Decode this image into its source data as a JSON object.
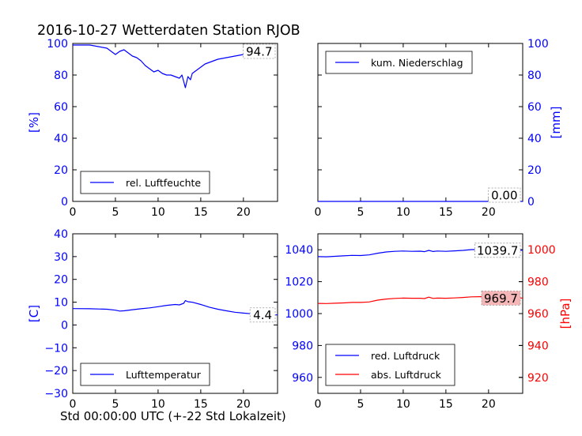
{
  "figure": {
    "title": "2016-10-27 Wetterdaten Station RJOB",
    "xlabel": "Std 00:00:00 UTC (+-22 Std Lokalzeit)"
  },
  "colors": {
    "blue": "#0000ff",
    "red": "#ff0000",
    "value_box_fill": "#ffffff",
    "value_box_fill_red": "#f4b6b6",
    "axes": "#000000"
  },
  "chart_data": [
    {
      "type": "line",
      "panel": "top-left",
      "xlim": [
        0,
        24
      ],
      "xticks": [
        "0",
        "5",
        "10",
        "15",
        "20"
      ],
      "ylim": [
        0,
        100
      ],
      "yticks": [
        "0",
        "20",
        "40",
        "60",
        "80",
        "100"
      ],
      "ylabel": "[%]",
      "ylabel_side": "left",
      "legend": "lower-left",
      "current_value": "94.7",
      "series": [
        {
          "name": "rel. Luftfeuchte",
          "color": "#0000ff",
          "x": [
            0,
            1,
            2,
            3,
            4,
            4.5,
            5,
            5.5,
            6,
            7,
            7.5,
            8,
            8.5,
            9,
            9.5,
            10,
            10.5,
            11,
            11.5,
            12,
            12.5,
            12.8,
            13,
            13.2,
            13.5,
            13.8,
            14,
            14.5,
            15,
            15.5,
            16,
            17,
            18,
            19,
            20,
            21,
            22,
            23,
            23.5
          ],
          "y": [
            99,
            99,
            99,
            98,
            97,
            95,
            93,
            95,
            96,
            92,
            91,
            89,
            86,
            84,
            82,
            83,
            81,
            80,
            80,
            79,
            78,
            80,
            76,
            72,
            79,
            77,
            81,
            83,
            85,
            87,
            88,
            90,
            91,
            92,
            93,
            93,
            94,
            95,
            95
          ]
        }
      ]
    },
    {
      "type": "line",
      "panel": "top-right",
      "xlim": [
        0,
        24
      ],
      "xticks": [
        "0",
        "5",
        "10",
        "15",
        "20"
      ],
      "ylim": [
        0,
        100
      ],
      "yticks": [
        "0",
        "20",
        "40",
        "60",
        "80",
        "100"
      ],
      "ylabel": "[mm]",
      "ylabel_side": "right",
      "legend": "upper-left",
      "current_value": "0.00",
      "series": [
        {
          "name": "kum. Niederschlag",
          "color": "#0000ff",
          "x": [
            0,
            24
          ],
          "y": [
            0,
            0
          ]
        }
      ]
    },
    {
      "type": "line",
      "panel": "bottom-left",
      "xlim": [
        0,
        24
      ],
      "xticks": [
        "0",
        "5",
        "10",
        "15",
        "20"
      ],
      "ylim": [
        -30,
        40
      ],
      "yticks": [
        "−30",
        "−20",
        "−10",
        "0",
        "10",
        "20",
        "30",
        "40"
      ],
      "ylabel": "[C]",
      "ylabel_side": "left",
      "legend": "lower-left",
      "current_value": "4.4",
      "series": [
        {
          "name": "Lufttemperatur",
          "color": "#0000ff",
          "x": [
            0,
            2,
            4,
            5,
            5.5,
            6,
            7,
            8,
            9,
            10,
            11,
            12,
            12.5,
            13,
            13.2,
            13.5,
            14,
            15,
            16,
            17,
            18,
            19,
            20,
            21,
            22,
            23,
            24
          ],
          "y": [
            7.2,
            7.1,
            6.9,
            6.5,
            6.1,
            6.2,
            6.7,
            7.1,
            7.5,
            8.0,
            8.6,
            9.0,
            8.8,
            9.5,
            10.7,
            10.2,
            10.0,
            9.0,
            7.8,
            6.9,
            6.2,
            5.6,
            5.2,
            4.9,
            4.6,
            4.4,
            4.4
          ]
        }
      ]
    },
    {
      "type": "line",
      "panel": "bottom-right",
      "xlim": [
        0,
        24
      ],
      "xticks": [
        "0",
        "5",
        "10",
        "15",
        "20"
      ],
      "ylim": [
        950,
        1050
      ],
      "yticks": [
        "960",
        "980",
        "1000",
        "1020",
        "1040"
      ],
      "ylabel_left": "",
      "y2lim": [
        910,
        1010
      ],
      "y2ticks": [
        "920",
        "940",
        "960",
        "980",
        "1000"
      ],
      "y2label": "[hPa]",
      "legend": "lower-left",
      "current_value": "1039.7",
      "current_value_2": "969.7",
      "series": [
        {
          "name": "red. Luftdruck",
          "axis": "left",
          "color": "#0000ff",
          "x": [
            0,
            1,
            2,
            3,
            4,
            5,
            6,
            7,
            8,
            9,
            10,
            11,
            12,
            12.5,
            13,
            13.5,
            14,
            15,
            16,
            17,
            18,
            19,
            20,
            21,
            22,
            23,
            24
          ],
          "y": [
            1035.7,
            1035.6,
            1035.9,
            1036.2,
            1036.5,
            1036.4,
            1036.8,
            1037.8,
            1038.6,
            1039.0,
            1039.2,
            1039.0,
            1039.1,
            1038.8,
            1039.6,
            1038.9,
            1039.2,
            1039.0,
            1039.3,
            1039.6,
            1040.1,
            1040.1,
            1040.3,
            1040.0,
            1039.8,
            1039.7,
            1039.7
          ]
        },
        {
          "name": "abs. Luftdruck",
          "axis": "right",
          "color": "#ff0000",
          "x": [
            0,
            1,
            2,
            3,
            4,
            5,
            6,
            7,
            8,
            9,
            10,
            11,
            12,
            12.5,
            13,
            13.5,
            14,
            15,
            16,
            17,
            18,
            19,
            20,
            21,
            22,
            23,
            24
          ],
          "y": [
            966.4,
            966.3,
            966.5,
            966.7,
            967.0,
            967.0,
            967.3,
            968.4,
            969.1,
            969.5,
            969.7,
            969.6,
            969.6,
            969.4,
            970.3,
            969.5,
            969.7,
            969.6,
            969.8,
            970.1,
            970.5,
            970.6,
            970.8,
            970.4,
            970.2,
            969.8,
            969.7
          ]
        }
      ]
    }
  ]
}
